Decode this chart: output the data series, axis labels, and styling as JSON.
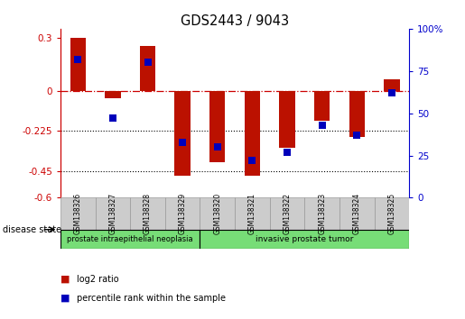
{
  "title": "GDS2443 / 9043",
  "samples": [
    "GSM138326",
    "GSM138327",
    "GSM138328",
    "GSM138329",
    "GSM138320",
    "GSM138321",
    "GSM138322",
    "GSM138323",
    "GSM138324",
    "GSM138325"
  ],
  "log2_ratio": [
    0.3,
    -0.04,
    0.255,
    -0.475,
    -0.4,
    -0.475,
    -0.32,
    -0.165,
    -0.26,
    0.065
  ],
  "percentile_rank": [
    82,
    47,
    80,
    33,
    30,
    22,
    27,
    43,
    37,
    62
  ],
  "group_boundary": 4,
  "groups": [
    {
      "label": "prostate intraepithelial neoplasia",
      "start": 0,
      "end": 4
    },
    {
      "label": "invasive prostate tumor",
      "start": 4,
      "end": 10
    }
  ],
  "ylim_left": [
    -0.6,
    0.35
  ],
  "ylim_right": [
    0,
    100
  ],
  "yticks_left": [
    -0.6,
    -0.45,
    -0.225,
    0.0,
    0.3
  ],
  "ytick_labels_left": [
    "-0.6",
    "-0.45",
    "-0.225",
    "0",
    "0.3"
  ],
  "yticks_right": [
    0,
    25,
    50,
    75,
    100
  ],
  "ytick_labels_right": [
    "0",
    "25",
    "50",
    "75",
    "100%"
  ],
  "hlines": [
    -0.225,
    -0.45
  ],
  "zero_line": 0.0,
  "bar_color": "#bb1100",
  "dot_color": "#0000bb",
  "bar_width": 0.45,
  "dot_size": 40,
  "left_axis_color": "#cc0000",
  "right_axis_color": "#0000cc",
  "tick_label_fontsize": 7.5,
  "title_fontsize": 10.5,
  "legend_labels": [
    "log2 ratio",
    "percentile rank within the sample"
  ],
  "legend_colors": [
    "#bb1100",
    "#0000bb"
  ],
  "disease_state_label": "disease state",
  "group_color": "#77dd77",
  "sample_bg_color": "#cccccc",
  "sample_border_color": "#999999",
  "group_border_color": "#000000"
}
